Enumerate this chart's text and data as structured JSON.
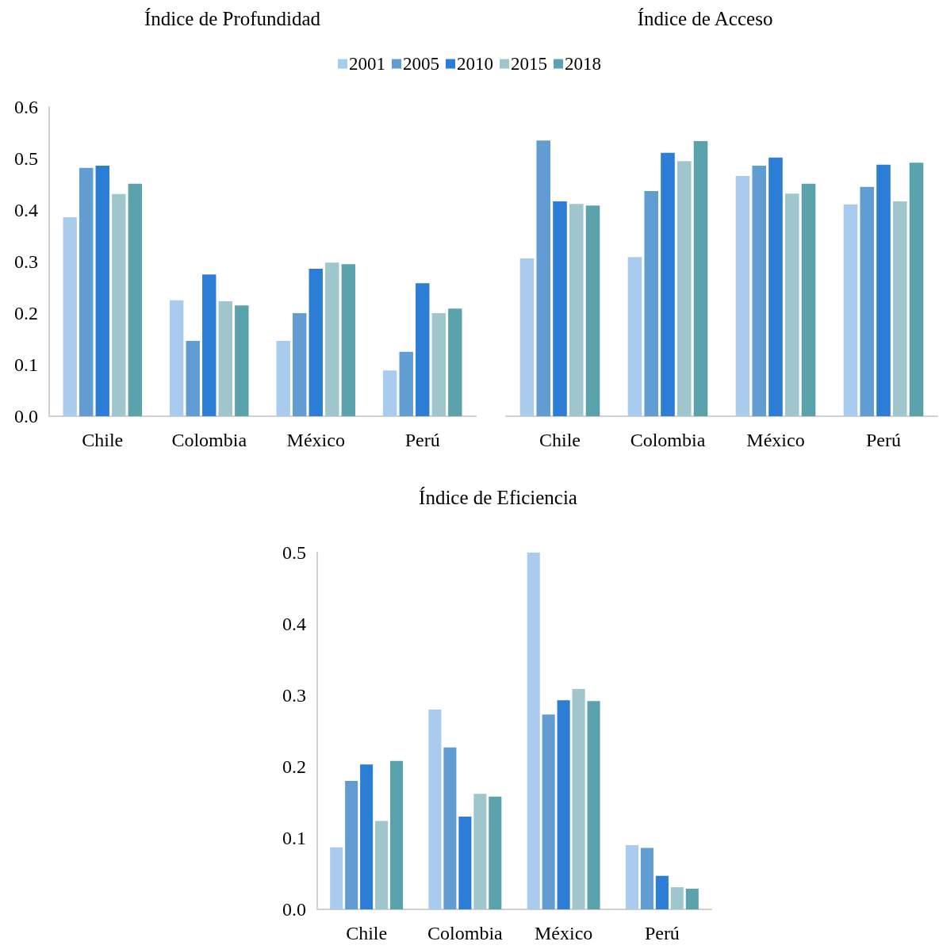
{
  "chart_data": [
    {
      "type": "bar",
      "title": "Índice de Profundidad",
      "categories": [
        "Chile",
        "Colombia",
        "México",
        "Perú"
      ],
      "ylim": [
        0,
        0.6
      ],
      "yticks": [
        {
          "value": 0,
          "label": "0.0"
        },
        0.1,
        0.2,
        0.3,
        0.4,
        0.5,
        0.6
      ],
      "grid": false,
      "legend": "top",
      "series": [
        {
          "name": "2001",
          "color": "#a9cbee",
          "values": [
            0.386,
            0.225,
            0.146,
            0.089
          ]
        },
        {
          "name": "2005",
          "color": "#619dd3",
          "values": [
            0.482,
            0.146,
            0.2,
            0.125
          ]
        },
        {
          "name": "2010",
          "color": "#2b7dd6",
          "values": [
            0.486,
            0.275,
            0.286,
            0.258
          ]
        },
        {
          "name": "2015",
          "color": "#9ec6cc",
          "values": [
            0.431,
            0.223,
            0.298,
            0.2
          ]
        },
        {
          "name": "2018",
          "color": "#5aa2ac",
          "values": [
            0.451,
            0.215,
            0.295,
            0.209
          ]
        }
      ]
    },
    {
      "type": "bar",
      "title": "Índice de Acceso",
      "categories": [
        "Chile",
        "Colombia",
        "México",
        "Perú"
      ],
      "ylim": [
        0,
        0.6
      ],
      "tick_labels": "x",
      "grid": false,
      "series": [
        {
          "color": "#a9cbee",
          "values": [
            0.306,
            0.309,
            0.466,
            0.411
          ]
        },
        {
          "color": "#619dd3",
          "values": [
            0.535,
            0.437,
            0.486,
            0.445
          ]
        },
        {
          "color": "#2b7dd6",
          "values": [
            0.417,
            0.511,
            0.502,
            0.488
          ]
        },
        {
          "color": "#9ec6cc",
          "values": [
            0.412,
            0.495,
            0.432,
            0.417
          ]
        },
        {
          "color": "#5aa2ac",
          "values": [
            0.409,
            0.534,
            0.451,
            0.492
          ]
        }
      ]
    },
    {
      "type": "bar",
      "title": "Índice de Eficiencia",
      "categories": [
        "Chile",
        "Colombia",
        "México",
        "Perú"
      ],
      "ylim": [
        0,
        0.5
      ],
      "yticks": [
        {
          "value": 0,
          "label": "0.0"
        },
        0.1,
        0.2,
        0.3,
        0.4,
        0.5
      ],
      "grid": false,
      "series": [
        {
          "color": "#a9cbee",
          "values": [
            0.087,
            0.28,
            0.5,
            0.09
          ]
        },
        {
          "color": "#619dd3",
          "values": [
            0.18,
            0.227,
            0.273,
            0.086
          ]
        },
        {
          "color": "#2b7dd6",
          "values": [
            0.203,
            0.13,
            0.293,
            0.047
          ]
        },
        {
          "color": "#9ec6cc",
          "values": [
            0.124,
            0.162,
            0.309,
            0.031
          ]
        },
        {
          "color": "#5aa2ac",
          "values": [
            0.208,
            0.158,
            0.292,
            0.029
          ]
        }
      ]
    }
  ]
}
